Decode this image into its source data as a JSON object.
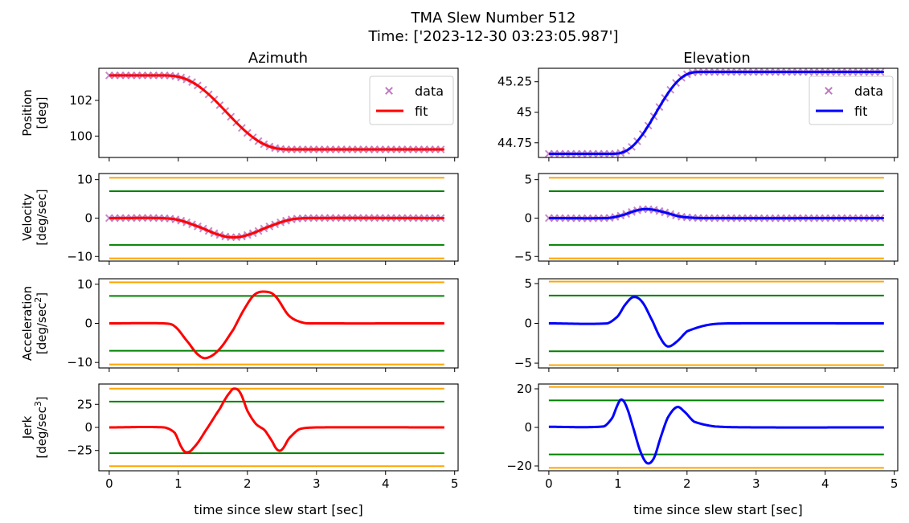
{
  "figure": {
    "title_line1": "TMA Slew Number 512",
    "title_line2": "Time: ['2023-12-30 03:23:05.987']",
    "col_titles": [
      "Azimuth",
      "Elevation"
    ],
    "row_labels": [
      {
        "name": "Position",
        "unit": "[deg]"
      },
      {
        "name": "Velocity",
        "unit": "[deg/sec]"
      },
      {
        "name": "Acceleration",
        "unit": "[deg/sec",
        "sup": "2",
        "close": "]"
      },
      {
        "name": "Jerk",
        "unit": "[deg/sec",
        "sup": "3",
        "close": "]"
      }
    ],
    "xlabel": "time since slew start [sec]",
    "legend": {
      "data": "data",
      "fit": "fit"
    }
  },
  "colors": {
    "data": "#bf77bf",
    "az_fit": "#ff0000",
    "el_fit": "#0000ff",
    "limit_outer": "#ffa500",
    "limit_inner": "#008000"
  },
  "chart_data": [
    {
      "type": "line",
      "panel": "azimuth-position",
      "xlim": [
        -0.15,
        5.05
      ],
      "ylim": [
        98.8,
        103.8
      ],
      "xticks": [
        0,
        1,
        2,
        3,
        4,
        5
      ],
      "yticks": [
        100,
        102
      ],
      "series": [
        {
          "name": "data",
          "kind": "scatter",
          "profile": "smoothstep",
          "y0": 103.4,
          "y1": 99.25,
          "t0": 0.75,
          "t1": 2.65,
          "x_start": 0,
          "x_end": 4.85,
          "step": 0.08
        },
        {
          "name": "fit",
          "kind": "line",
          "profile": "smoothstep",
          "y0": 103.4,
          "y1": 99.25,
          "t0": 0.75,
          "t1": 2.65
        }
      ],
      "legend": "upper right"
    },
    {
      "type": "line",
      "panel": "elevation-position",
      "xlim": [
        -0.15,
        5.05
      ],
      "ylim": [
        44.63,
        45.36
      ],
      "xticks": [
        0,
        1,
        2,
        3,
        4,
        5
      ],
      "yticks": [
        44.75,
        45.0,
        45.25
      ],
      "series": [
        {
          "name": "data",
          "kind": "scatter",
          "profile": "smoothstep",
          "y0": 44.66,
          "y1": 45.33,
          "t0": 0.9,
          "t1": 2.2,
          "x_start": 0,
          "x_end": 4.85,
          "step": 0.08
        },
        {
          "name": "fit",
          "kind": "line",
          "profile": "smoothstep",
          "y0": 44.66,
          "y1": 45.33,
          "t0": 0.9,
          "t1": 2.2
        }
      ],
      "legend": "upper right"
    },
    {
      "type": "line",
      "panel": "azimuth-velocity",
      "xlim": [
        -0.15,
        5.05
      ],
      "ylim": [
        -11.2,
        11.6
      ],
      "xticks": [
        0,
        1,
        2,
        3,
        4,
        5
      ],
      "yticks": [
        -10,
        0,
        10
      ],
      "limits": {
        "outer": 10.5,
        "inner": 7.0
      },
      "series": [
        {
          "name": "data",
          "kind": "scatter",
          "points": [
            [
              0,
              0
            ],
            [
              0.75,
              0
            ],
            [
              1.0,
              -0.5
            ],
            [
              1.3,
              -2.3
            ],
            [
              1.6,
              -4.4
            ],
            [
              1.8,
              -5.0
            ],
            [
              2.0,
              -4.4
            ],
            [
              2.3,
              -2.3
            ],
            [
              2.6,
              -0.5
            ],
            [
              2.85,
              0
            ],
            [
              4.85,
              0
            ]
          ],
          "x_start": 0,
          "x_end": 4.85,
          "step": 0.08
        },
        {
          "name": "fit",
          "kind": "line",
          "points": [
            [
              0,
              0
            ],
            [
              0.75,
              0
            ],
            [
              1.0,
              -0.5
            ],
            [
              1.3,
              -2.3
            ],
            [
              1.6,
              -4.4
            ],
            [
              1.8,
              -5.0
            ],
            [
              2.0,
              -4.4
            ],
            [
              2.3,
              -2.3
            ],
            [
              2.6,
              -0.5
            ],
            [
              2.85,
              0
            ],
            [
              4.85,
              0
            ]
          ]
        }
      ]
    },
    {
      "type": "line",
      "panel": "elevation-velocity",
      "xlim": [
        -0.15,
        5.05
      ],
      "ylim": [
        -5.6,
        5.8
      ],
      "xticks": [
        0,
        1,
        2,
        3,
        4,
        5
      ],
      "yticks": [
        -5,
        0,
        5
      ],
      "limits": {
        "outer": 5.25,
        "inner": 3.5
      },
      "series": [
        {
          "name": "data",
          "kind": "scatter",
          "points": [
            [
              0,
              0
            ],
            [
              0.85,
              0
            ],
            [
              1.05,
              0.35
            ],
            [
              1.3,
              1.05
            ],
            [
              1.45,
              1.15
            ],
            [
              1.65,
              0.8
            ],
            [
              1.9,
              0.2
            ],
            [
              2.2,
              0
            ],
            [
              4.85,
              0
            ]
          ],
          "x_start": 0,
          "x_end": 4.85,
          "step": 0.08
        },
        {
          "name": "fit",
          "kind": "line",
          "points": [
            [
              0,
              0
            ],
            [
              0.85,
              0
            ],
            [
              1.05,
              0.35
            ],
            [
              1.3,
              1.05
            ],
            [
              1.45,
              1.15
            ],
            [
              1.65,
              0.8
            ],
            [
              1.9,
              0.2
            ],
            [
              2.2,
              0
            ],
            [
              4.85,
              0
            ]
          ]
        }
      ]
    },
    {
      "type": "line",
      "panel": "azimuth-acceleration",
      "xlim": [
        -0.15,
        5.05
      ],
      "ylim": [
        -11.4,
        11.4
      ],
      "xticks": [
        0,
        1,
        2,
        3,
        4,
        5
      ],
      "yticks": [
        -10,
        0,
        10
      ],
      "limits": {
        "outer": 10.5,
        "inner": 7.0
      },
      "series": [
        {
          "name": "fit",
          "kind": "line",
          "points": [
            [
              0,
              0
            ],
            [
              0.8,
              0
            ],
            [
              0.95,
              -0.8
            ],
            [
              1.15,
              -5.0
            ],
            [
              1.3,
              -8.2
            ],
            [
              1.42,
              -8.8
            ],
            [
              1.6,
              -6.5
            ],
            [
              1.8,
              -1.5
            ],
            [
              1.95,
              3.5
            ],
            [
              2.1,
              7.3
            ],
            [
              2.25,
              8.1
            ],
            [
              2.4,
              7.0
            ],
            [
              2.6,
              2.0
            ],
            [
              2.8,
              0.2
            ],
            [
              3.0,
              0
            ],
            [
              4.85,
              0
            ]
          ]
        }
      ]
    },
    {
      "type": "line",
      "panel": "elevation-acceleration",
      "xlim": [
        -0.15,
        5.05
      ],
      "ylim": [
        -5.6,
        5.6
      ],
      "xticks": [
        0,
        1,
        2,
        3,
        4,
        5
      ],
      "yticks": [
        -5,
        0,
        5
      ],
      "limits": {
        "outer": 5.25,
        "inner": 3.5
      },
      "series": [
        {
          "name": "fit",
          "kind": "line",
          "points": [
            [
              0,
              0
            ],
            [
              0.85,
              0
            ],
            [
              1.0,
              0.9
            ],
            [
              1.1,
              2.3
            ],
            [
              1.22,
              3.3
            ],
            [
              1.35,
              2.7
            ],
            [
              1.5,
              0.3
            ],
            [
              1.62,
              -1.9
            ],
            [
              1.72,
              -2.9
            ],
            [
              1.85,
              -2.3
            ],
            [
              2.0,
              -1.0
            ],
            [
              2.3,
              -0.2
            ],
            [
              2.6,
              0
            ],
            [
              4.85,
              0
            ]
          ]
        }
      ]
    },
    {
      "type": "line",
      "panel": "azimuth-jerk",
      "xlim": [
        -0.15,
        5.05
      ],
      "ylim": [
        -47,
        47
      ],
      "xticks": [
        0,
        1,
        2,
        3,
        4,
        5
      ],
      "yticks": [
        -25,
        0,
        25
      ],
      "limits": {
        "outer": 42.0,
        "inner": 28.0
      },
      "series": [
        {
          "name": "fit",
          "kind": "line",
          "points": [
            [
              0,
              0
            ],
            [
              0.8,
              0
            ],
            [
              0.95,
              -6
            ],
            [
              1.05,
              -22
            ],
            [
              1.12,
              -27
            ],
            [
              1.22,
              -22
            ],
            [
              1.4,
              -3
            ],
            [
              1.6,
              20
            ],
            [
              1.75,
              38
            ],
            [
              1.82,
              42
            ],
            [
              1.9,
              37
            ],
            [
              2.0,
              18
            ],
            [
              2.12,
              4
            ],
            [
              2.25,
              -3
            ],
            [
              2.35,
              -14
            ],
            [
              2.43,
              -24
            ],
            [
              2.5,
              -24
            ],
            [
              2.6,
              -12
            ],
            [
              2.75,
              -2
            ],
            [
              3.0,
              0
            ],
            [
              4.85,
              0
            ]
          ]
        }
      ]
    },
    {
      "type": "line",
      "panel": "elevation-jerk",
      "xlim": [
        -0.15,
        5.05
      ],
      "ylim": [
        -22.5,
        22.5
      ],
      "xticks": [
        0,
        1,
        2,
        3,
        4,
        5
      ],
      "yticks": [
        -20,
        0,
        20
      ],
      "limits": {
        "outer": 21.0,
        "inner": 14.0
      },
      "series": [
        {
          "name": "fit",
          "kind": "line",
          "points": [
            [
              0,
              0.3
            ],
            [
              0.8,
              0.5
            ],
            [
              0.92,
              5
            ],
            [
              1.0,
              12
            ],
            [
              1.05,
              14.5
            ],
            [
              1.12,
              11
            ],
            [
              1.22,
              0
            ],
            [
              1.32,
              -12
            ],
            [
              1.42,
              -18.5
            ],
            [
              1.52,
              -16
            ],
            [
              1.62,
              -5
            ],
            [
              1.72,
              5
            ],
            [
              1.85,
              10.5
            ],
            [
              1.95,
              8.5
            ],
            [
              2.1,
              3
            ],
            [
              2.4,
              0.5
            ],
            [
              3.0,
              0
            ],
            [
              4.85,
              0
            ]
          ]
        }
      ]
    }
  ]
}
